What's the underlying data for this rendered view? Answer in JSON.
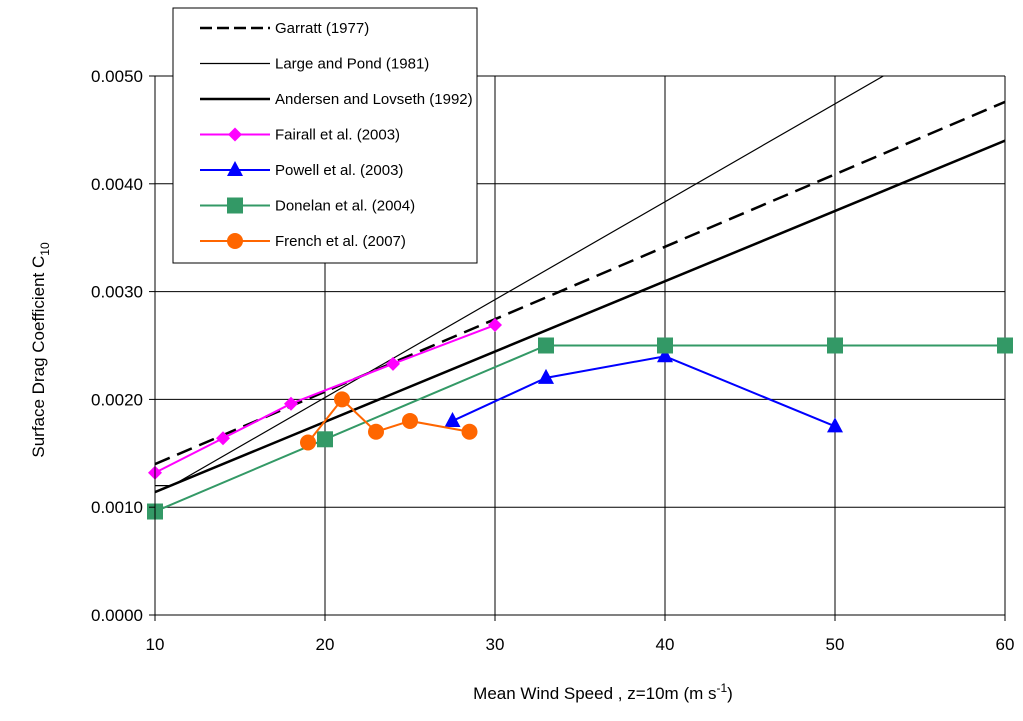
{
  "chart_data": {
    "type": "line",
    "xlabel": "Mean Wind Speed , z=10m",
    "xlabel_unit": "(m s",
    "xlabel_unit_sup": "-1",
    "xlabel_unit_end": ")",
    "ylabel": "Surface Drag Coefficient  C",
    "ylabel_sub": "10",
    "xlim": [
      10,
      60
    ],
    "ylim": [
      0,
      0.005
    ],
    "x_ticks": [
      10,
      20,
      30,
      40,
      50,
      60
    ],
    "x_tick_labels": [
      "10",
      "20",
      "30",
      "40",
      "50",
      "60"
    ],
    "y_ticks": [
      0,
      0.001,
      0.002,
      0.003,
      0.004,
      0.005
    ],
    "y_tick_labels": [
      "0.0000",
      "0.0010",
      "0.0020",
      "0.0030",
      "0.0040",
      "0.0050"
    ],
    "grid": true,
    "legend_position": "top-left",
    "series": [
      {
        "name": "Garratt (1977)",
        "color": "#000000",
        "style": "dashed",
        "marker": "none",
        "x": [
          10,
          60
        ],
        "y": [
          0.0014,
          0.00476
        ]
      },
      {
        "name": "Large and Pond (1981)",
        "color": "#000000",
        "style": "thin",
        "marker": "none",
        "x": [
          10,
          11,
          60
        ],
        "y": [
          0.0012,
          0.0012,
          0.00565
        ]
      },
      {
        "name": "Andersen and Lovseth (1992)",
        "color": "#000000",
        "style": "thick",
        "marker": "none",
        "x": [
          10,
          60
        ],
        "y": [
          0.00114,
          0.0044
        ]
      },
      {
        "name": "Fairall et al. (2003)",
        "color": "#ff00ff",
        "style": "solid",
        "marker": "diamond",
        "x": [
          10,
          14,
          18,
          24,
          30
        ],
        "y": [
          0.00132,
          0.00164,
          0.00196,
          0.00233,
          0.00269
        ]
      },
      {
        "name": "Powell et al. (2003)",
        "color": "#0000ff",
        "style": "solid",
        "marker": "triangle",
        "x": [
          27.5,
          33,
          40,
          50
        ],
        "y": [
          0.0018,
          0.0022,
          0.0024,
          0.00175
        ]
      },
      {
        "name": "Donelan et al. (2004)",
        "color": "#339966",
        "style": "solid",
        "marker": "square",
        "x": [
          10,
          20,
          33,
          40,
          50,
          60
        ],
        "y": [
          0.00096,
          0.00163,
          0.0025,
          0.0025,
          0.0025,
          0.0025
        ]
      },
      {
        "name": "French et al. (2007)",
        "color": "#ff6600",
        "style": "solid",
        "marker": "circle",
        "x": [
          19,
          21,
          23,
          25,
          28.5
        ],
        "y": [
          0.0016,
          0.002,
          0.0017,
          0.0018,
          0.0017
        ]
      }
    ]
  }
}
